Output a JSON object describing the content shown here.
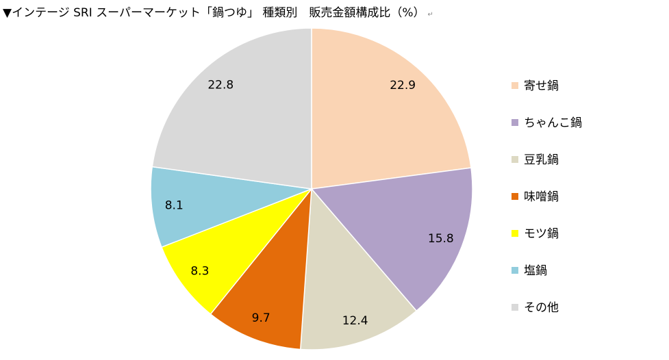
{
  "chart_data": {
    "type": "pie",
    "title": "▼インテージ SRI スーパーマーケット「鍋つゆ」 種類別　販売金額構成比（%）",
    "categories": [
      "寄せ鍋",
      "ちゃんこ鍋",
      "豆乳鍋",
      "味噌鍋",
      "モツ鍋",
      "塩鍋",
      "その他"
    ],
    "values": [
      22.9,
      15.8,
      12.4,
      9.7,
      8.3,
      8.1,
      22.8
    ],
    "value_labels": [
      "22.9",
      "15.8",
      "12.4",
      "9.7",
      "8.3",
      "8.1",
      "22.8"
    ],
    "colors": [
      "#FAD4B4",
      "#B1A1C8",
      "#DDD9C3",
      "#E46C0A",
      "#FFFF00",
      "#92CDDD",
      "#D9D9D9"
    ],
    "legend_position": "right",
    "start_angle": "top, clockwise"
  },
  "return_mark": "↵"
}
